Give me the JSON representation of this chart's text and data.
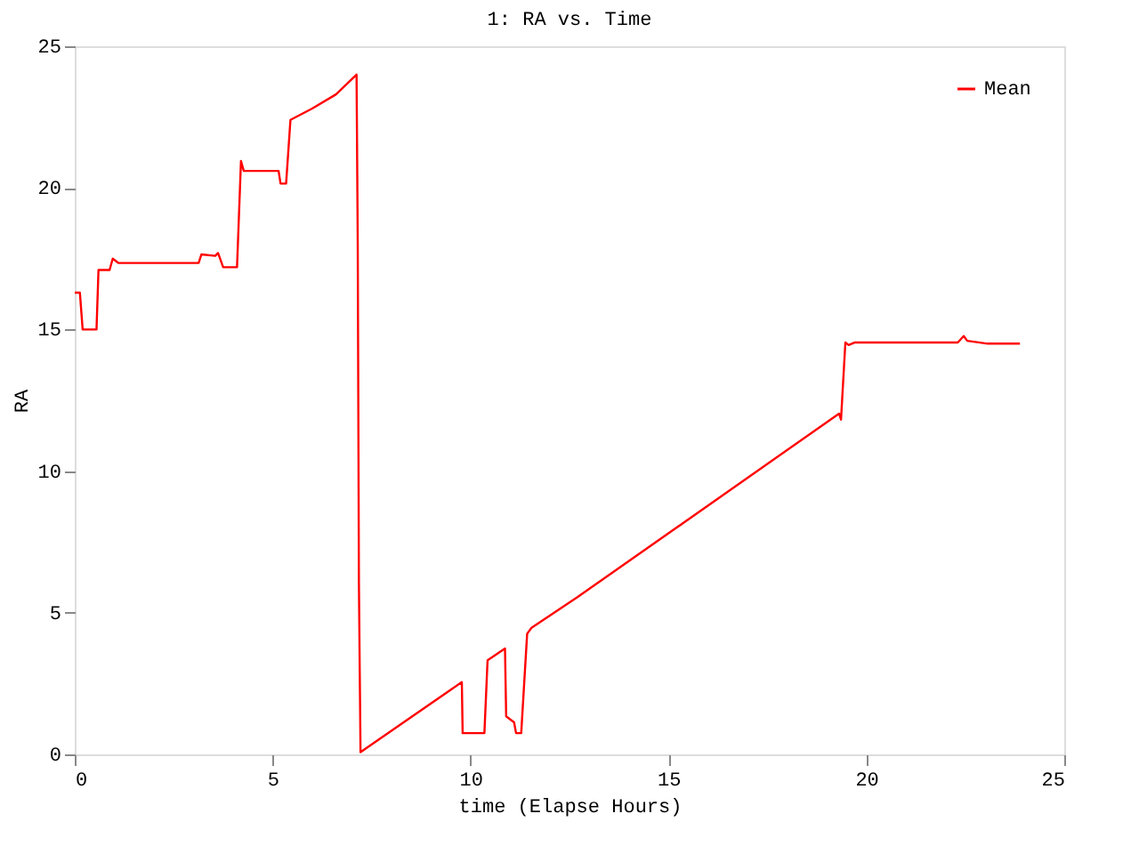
{
  "chart_data": {
    "type": "line",
    "title": "1: RA vs. Time",
    "xlabel": "time (Elapse Hours)",
    "ylabel": "RA",
    "xlim": [
      0,
      25
    ],
    "xticks": [
      0,
      5,
      10,
      15,
      20,
      25
    ],
    "ylim": [
      0,
      25
    ],
    "yticks": [
      0,
      5,
      10,
      15,
      20,
      25
    ],
    "grid": false,
    "legend": "top right",
    "marker": "none",
    "line_style": "solid",
    "series": [
      {
        "name": "Mean",
        "color": "#ff0000",
        "x": [
          0,
          0.13,
          0.2,
          0.55,
          0.6,
          0.88,
          0.96,
          1.1,
          3.13,
          3.2,
          3.55,
          3.62,
          3.75,
          4.1,
          4.2,
          4.27,
          5.15,
          5.2,
          5.34,
          5.45,
          6.0,
          6.6,
          7.12,
          7.15,
          7.18,
          7.22,
          9.78,
          9.8,
          10.35,
          10.43,
          10.87,
          10.9,
          11.1,
          11.15,
          11.28,
          11.43,
          11.54,
          12.7,
          19.31,
          19.36,
          19.47,
          19.55,
          19.7,
          22.31,
          22.46,
          22.55,
          23.07,
          23.88
        ],
        "values": [
          16.3,
          16.3,
          15.0,
          15.0,
          17.1,
          17.1,
          17.5,
          17.35,
          17.35,
          17.65,
          17.6,
          17.7,
          17.2,
          17.2,
          20.95,
          20.6,
          20.6,
          20.15,
          20.15,
          22.4,
          22.8,
          23.3,
          24.0,
          18.0,
          6.0,
          0.08,
          2.55,
          0.75,
          0.75,
          3.32,
          3.74,
          1.34,
          1.13,
          0.75,
          0.75,
          4.26,
          4.47,
          5.55,
          12.03,
          11.82,
          14.54,
          14.45,
          14.54,
          14.54,
          14.77,
          14.6,
          14.5,
          14.5
        ]
      }
    ]
  }
}
